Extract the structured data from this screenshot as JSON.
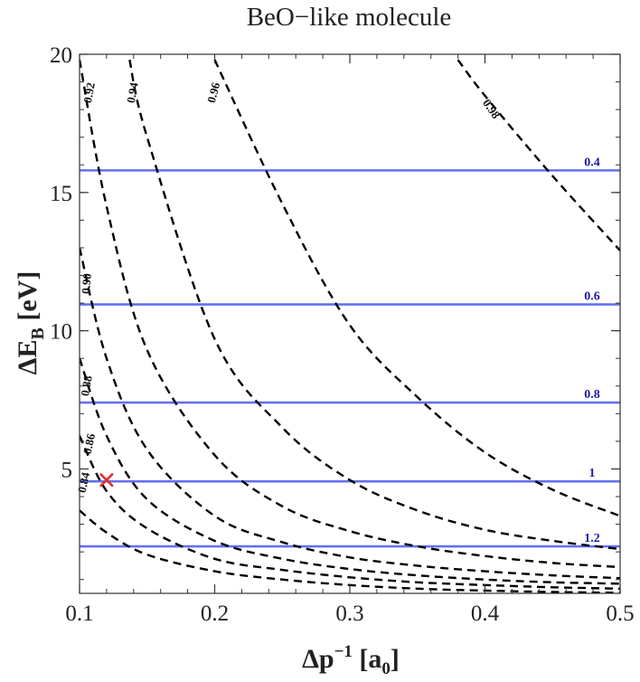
{
  "chart_data": {
    "type": "line",
    "title": "BeO−like molecule",
    "xlabel": "Δp",
    "xlabel_sup": "−1",
    "xlabel_unit_open": " [a",
    "xlabel_unit_sub": "0",
    "xlabel_unit_close": "]",
    "ylabel": "ΔE",
    "ylabel_sub": "B",
    "ylabel_unit": " [eV]",
    "xlim": [
      0.1,
      0.5
    ],
    "ylim": [
      0.5,
      20
    ],
    "x_ticks": [
      0.1,
      0.2,
      0.3,
      0.4,
      0.5
    ],
    "x_tick_labels": [
      "0.1",
      "0.2",
      "0.3",
      "0.4",
      "0.5"
    ],
    "y_ticks": [
      5,
      10,
      15,
      20
    ],
    "y_tick_labels": [
      "5",
      "10",
      "15",
      "20"
    ],
    "grid": false,
    "contours": [
      {
        "label": "0.84",
        "points": [
          [
            0.1,
            3.5
          ],
          [
            0.12,
            2.7
          ],
          [
            0.15,
            1.9
          ],
          [
            0.2,
            1.3
          ],
          [
            0.25,
            1.0
          ],
          [
            0.3,
            0.8
          ],
          [
            0.35,
            0.67
          ],
          [
            0.4,
            0.6
          ],
          [
            0.45,
            0.55
          ],
          [
            0.5,
            0.52
          ]
        ]
      },
      {
        "label": "0.86",
        "points": [
          [
            0.1,
            6.2
          ],
          [
            0.12,
            4.2
          ],
          [
            0.15,
            2.85
          ],
          [
            0.2,
            1.75
          ],
          [
            0.25,
            1.35
          ],
          [
            0.3,
            1.08
          ],
          [
            0.35,
            0.9
          ],
          [
            0.4,
            0.8
          ],
          [
            0.45,
            0.72
          ],
          [
            0.5,
            0.67
          ]
        ]
      },
      {
        "label": "0.88",
        "points": [
          [
            0.1,
            9.0
          ],
          [
            0.12,
            6.2
          ],
          [
            0.15,
            3.9
          ],
          [
            0.2,
            2.4
          ],
          [
            0.25,
            1.75
          ],
          [
            0.3,
            1.38
          ],
          [
            0.35,
            1.15
          ],
          [
            0.4,
            1.0
          ],
          [
            0.45,
            0.9
          ],
          [
            0.5,
            0.85
          ]
        ]
      },
      {
        "label": "0.90",
        "points": [
          [
            0.1,
            13.0
          ],
          [
            0.12,
            9.0
          ],
          [
            0.15,
            5.7
          ],
          [
            0.2,
            3.3
          ],
          [
            0.25,
            2.35
          ],
          [
            0.3,
            1.8
          ],
          [
            0.35,
            1.5
          ],
          [
            0.4,
            1.3
          ],
          [
            0.45,
            1.15
          ],
          [
            0.5,
            1.05
          ]
        ]
      },
      {
        "label": "0.92",
        "points": [
          [
            0.1,
            19.8
          ],
          [
            0.12,
            14.5
          ],
          [
            0.15,
            9.3
          ],
          [
            0.2,
            5.5
          ],
          [
            0.25,
            3.65
          ],
          [
            0.3,
            2.75
          ],
          [
            0.35,
            2.2
          ],
          [
            0.4,
            1.85
          ],
          [
            0.45,
            1.6
          ],
          [
            0.5,
            1.45
          ]
        ]
      },
      {
        "label": "0.94",
        "points": [
          [
            0.137,
            19.8
          ],
          [
            0.15,
            17.0
          ],
          [
            0.2,
            9.7
          ],
          [
            0.25,
            6.5
          ],
          [
            0.3,
            4.6
          ],
          [
            0.35,
            3.5
          ],
          [
            0.4,
            2.8
          ],
          [
            0.45,
            2.4
          ],
          [
            0.5,
            2.1
          ]
        ]
      },
      {
        "label": "0.96",
        "points": [
          [
            0.2,
            19.8
          ],
          [
            0.25,
            14.6
          ],
          [
            0.3,
            10.2
          ],
          [
            0.35,
            7.6
          ],
          [
            0.4,
            5.6
          ],
          [
            0.45,
            4.25
          ],
          [
            0.5,
            3.3
          ]
        ]
      },
      {
        "label": "0.98",
        "points": [
          [
            0.38,
            19.8
          ],
          [
            0.4,
            18.5
          ],
          [
            0.45,
            15.6
          ],
          [
            0.5,
            12.9
          ]
        ]
      }
    ],
    "contour_label_positions": [
      {
        "label": "0.92",
        "x": 0.108,
        "y": 18.6,
        "angle": -80
      },
      {
        "label": "0.94",
        "x": 0.14,
        "y": 18.6,
        "angle": -80
      },
      {
        "label": "0.96",
        "x": 0.2,
        "y": 18.6,
        "angle": -75
      },
      {
        "label": "0.98",
        "x": 0.404,
        "y": 18.0,
        "angle": 55
      },
      {
        "label": "0.90",
        "x": 0.106,
        "y": 11.7,
        "angle": -85
      },
      {
        "label": "0.88",
        "x": 0.106,
        "y": 8.0,
        "angle": -80
      },
      {
        "label": "0.86",
        "x": 0.108,
        "y": 5.9,
        "angle": -78
      },
      {
        "label": "0.84",
        "x": 0.104,
        "y": 4.5,
        "angle": -78
      }
    ],
    "horizontal_lines": [
      {
        "label": "0.4",
        "y": 15.8
      },
      {
        "label": "0.6",
        "y": 10.95
      },
      {
        "label": "0.8",
        "y": 7.4
      },
      {
        "label": "1",
        "y": 4.55
      },
      {
        "label": "1.2",
        "y": 2.2
      }
    ],
    "marker": {
      "symbol": "cross",
      "x": 0.12,
      "y": 4.6
    },
    "colors": {
      "contour": "#000000",
      "hline": "#6370ee",
      "hline_label": "#1a1aa8",
      "marker": "#e03030",
      "frame": "#333333"
    }
  }
}
